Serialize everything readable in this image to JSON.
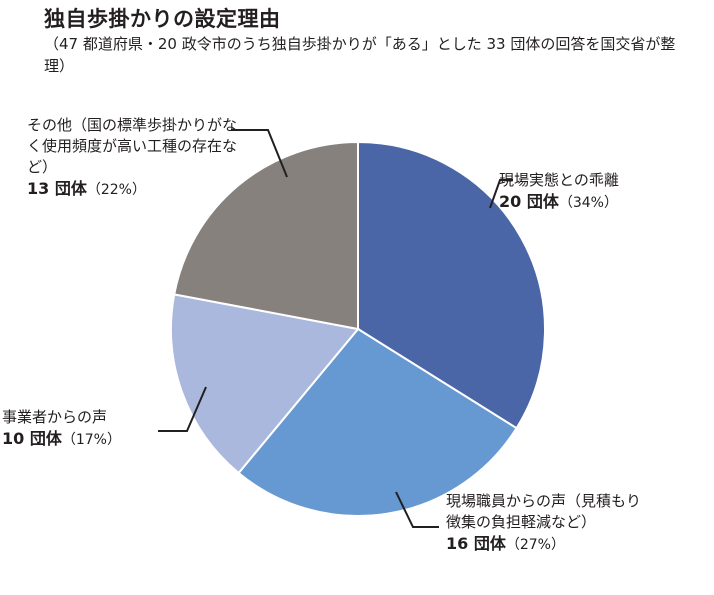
{
  "title": "独自歩掛かりの設定理由",
  "subtitle": "（47 都道府県・20 政令市のうち独自歩掛かりが「ある」とした 33 団体の回答を国交省が整理）",
  "chart_data": {
    "type": "pie",
    "start_angle_deg": 0,
    "direction": "clockwise",
    "slices": [
      {
        "label": "現場実態との乖離",
        "value": 20,
        "value_label": "20 団体",
        "percent_label": "（34%）",
        "color": "#4a66a7"
      },
      {
        "label": "現場職員からの声（見積もり徴集の負担軽減など）",
        "value": 16,
        "value_label": "16 団体",
        "percent_label": "（27%）",
        "color": "#6699d1"
      },
      {
        "label": "事業者からの声",
        "value": 10,
        "value_label": "10 団体",
        "percent_label": "（17%）",
        "color": "#aab8dd"
      },
      {
        "label": "その他（国の標準歩掛かりがなく使用頻度が高い工種の存在など）",
        "value": 13,
        "value_label": "13 団体",
        "percent_label": "（22%）",
        "color": "#86817c"
      }
    ]
  }
}
